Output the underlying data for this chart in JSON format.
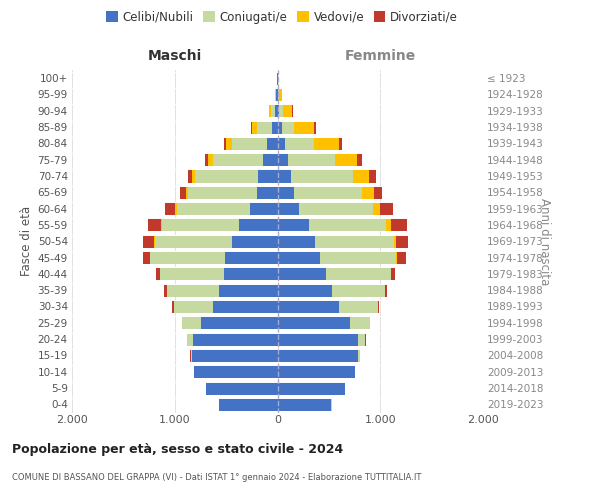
{
  "age_groups": [
    "100+",
    "95-99",
    "90-94",
    "85-89",
    "80-84",
    "75-79",
    "70-74",
    "65-69",
    "60-64",
    "55-59",
    "50-54",
    "45-49",
    "40-44",
    "35-39",
    "30-34",
    "25-29",
    "20-24",
    "15-19",
    "10-14",
    "5-9",
    "0-4"
  ],
  "birth_years": [
    "≤ 1923",
    "1924-1928",
    "1929-1933",
    "1934-1938",
    "1939-1943",
    "1944-1948",
    "1949-1953",
    "1954-1958",
    "1959-1963",
    "1964-1968",
    "1969-1973",
    "1974-1978",
    "1979-1983",
    "1984-1988",
    "1989-1993",
    "1994-1998",
    "1999-2003",
    "2004-2008",
    "2009-2013",
    "2014-2018",
    "2019-2023"
  ],
  "maschi": {
    "celibi": [
      5,
      12,
      25,
      55,
      100,
      140,
      185,
      200,
      265,
      370,
      445,
      510,
      520,
      570,
      630,
      740,
      820,
      830,
      810,
      695,
      565
    ],
    "coniugati": [
      2,
      8,
      38,
      148,
      345,
      490,
      615,
      670,
      715,
      755,
      750,
      730,
      625,
      505,
      375,
      185,
      62,
      16,
      4,
      1,
      1
    ],
    "vedovi": [
      1,
      3,
      18,
      48,
      55,
      45,
      35,
      25,
      16,
      11,
      8,
      4,
      2,
      1,
      1,
      0,
      0,
      0,
      0,
      0,
      0
    ],
    "divorziati": [
      0,
      2,
      4,
      9,
      18,
      28,
      38,
      57,
      97,
      123,
      103,
      66,
      36,
      26,
      16,
      8,
      3,
      1,
      0,
      0,
      0
    ]
  },
  "femmine": {
    "nubili": [
      3,
      8,
      17,
      43,
      72,
      98,
      128,
      158,
      212,
      302,
      362,
      418,
      468,
      530,
      595,
      705,
      785,
      785,
      755,
      655,
      525
    ],
    "coniugate": [
      1,
      7,
      33,
      122,
      285,
      465,
      605,
      665,
      718,
      758,
      768,
      733,
      632,
      512,
      383,
      193,
      70,
      15,
      3,
      1,
      1
    ],
    "vedove": [
      3,
      28,
      95,
      192,
      242,
      210,
      162,
      112,
      72,
      46,
      21,
      12,
      5,
      3,
      1,
      1,
      0,
      0,
      0,
      0,
      0
    ],
    "divorziate": [
      0,
      4,
      8,
      16,
      26,
      46,
      66,
      85,
      125,
      152,
      122,
      85,
      36,
      21,
      11,
      6,
      2,
      1,
      0,
      0,
      0
    ]
  },
  "colors": {
    "celibi": "#4472c4",
    "coniugati": "#c5d9a0",
    "vedovi": "#ffc000",
    "divorziati": "#c0392b"
  },
  "title": "Popolazione per età, sesso e stato civile - 2024",
  "subtitle": "COMUNE DI BASSANO DEL GRAPPA (VI) - Dati ISTAT 1° gennaio 2024 - Elaborazione TUTTITALIA.IT",
  "maschi_label": "Maschi",
  "femmine_label": "Femmine",
  "ylabel_left": "Fasce di età",
  "ylabel_right": "Anni di nascita",
  "xlim": 2000,
  "legend": [
    "Celibi/Nubili",
    "Coniugati/e",
    "Vedovi/e",
    "Divorziati/e"
  ]
}
